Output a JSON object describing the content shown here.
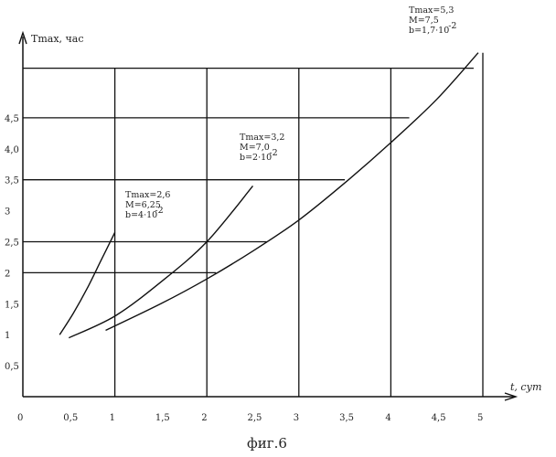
{
  "chart_data": {
    "type": "line",
    "xlabel": "t, сут",
    "ylabel": "Tmax, час",
    "xlim": [
      0,
      5
    ],
    "ylim": [
      0,
      5.3
    ],
    "x_ticks": [
      "0",
      "0,5",
      "1",
      "1,5",
      "2",
      "2,5",
      "3",
      "3,5",
      "4",
      "4,5",
      "5"
    ],
    "y_ticks": [
      "0,5",
      "1",
      "1,5",
      "2",
      "2,5",
      "3",
      "3,5",
      "4,0",
      "4,5"
    ],
    "grid": true,
    "series": [
      {
        "annotation": [
          "Tmax=2,6",
          "M=6,25",
          "b=4·10",
          "-2"
        ],
        "x": [
          0.4,
          0.55,
          0.7,
          0.85,
          1.0
        ],
        "y": [
          1.0,
          1.35,
          1.75,
          2.2,
          2.65
        ]
      },
      {
        "annotation": [
          "Tmax=3,2",
          "M=7,0",
          "b=2·10",
          "-2"
        ],
        "x": [
          0.5,
          1.0,
          1.5,
          2.0,
          2.5
        ],
        "y": [
          0.95,
          1.3,
          1.85,
          2.5,
          3.4
        ]
      },
      {
        "annotation": [
          "Tmax=5,3",
          "M=7,5",
          "b=1,7·10",
          "-2"
        ],
        "x": [
          0.9,
          1.5,
          2.0,
          2.5,
          3.0,
          3.5,
          4.0,
          4.5,
          4.95
        ],
        "y": [
          1.07,
          1.5,
          1.9,
          2.35,
          2.85,
          3.45,
          4.1,
          4.8,
          5.55
        ]
      }
    ],
    "reference_lines": [
      {
        "y": 2.0,
        "x_end": 2.1
      },
      {
        "y": 2.5,
        "x_end": 2.65
      },
      {
        "y": 3.5,
        "x_end": 3.5
      },
      {
        "y": 4.5,
        "x_end": 4.2
      },
      {
        "y": 5.3,
        "x_end": 4.9
      }
    ],
    "vertical_lines_x": [
      1,
      2,
      3,
      4,
      5
    ],
    "caption": "фиг.6"
  }
}
